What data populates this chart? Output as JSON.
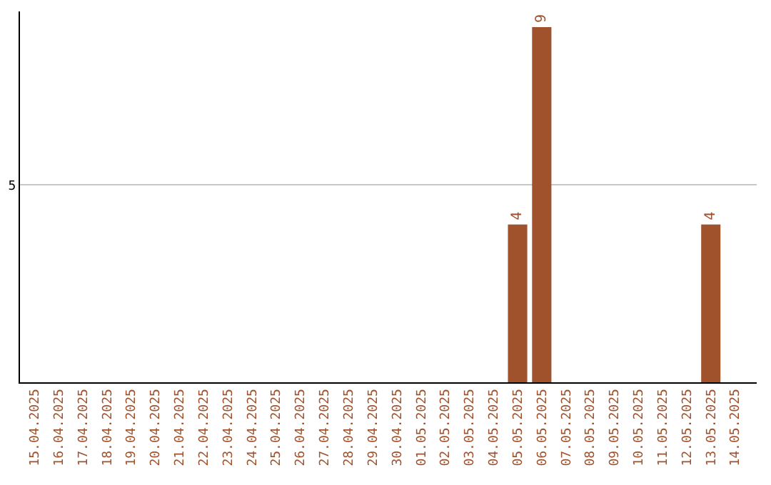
{
  "chart_data": {
    "type": "bar",
    "categories": [
      "15.04.2025",
      "16.04.2025",
      "17.04.2025",
      "18.04.2025",
      "19.04.2025",
      "20.04.2025",
      "21.04.2025",
      "22.04.2025",
      "23.04.2025",
      "24.04.2025",
      "25.04.2025",
      "26.04.2025",
      "27.04.2025",
      "28.04.2025",
      "29.04.2025",
      "30.04.2025",
      "01.05.2025",
      "02.05.2025",
      "03.05.2025",
      "04.05.2025",
      "05.05.2025",
      "06.05.2025",
      "07.05.2025",
      "08.05.2025",
      "09.05.2025",
      "10.05.2025",
      "11.05.2025",
      "12.05.2025",
      "13.05.2025",
      "14.05.2025"
    ],
    "values": [
      null,
      null,
      null,
      null,
      null,
      null,
      null,
      null,
      null,
      null,
      null,
      null,
      null,
      null,
      null,
      null,
      null,
      null,
      null,
      null,
      4,
      9,
      null,
      null,
      null,
      null,
      null,
      null,
      4,
      null
    ],
    "value_labels": [
      null,
      null,
      null,
      null,
      null,
      null,
      null,
      null,
      null,
      null,
      null,
      null,
      null,
      null,
      null,
      null,
      null,
      null,
      null,
      null,
      "4",
      "9",
      null,
      null,
      null,
      null,
      null,
      null,
      "4",
      null
    ],
    "color": "#a0522d",
    "ylim": [
      0,
      9.4
    ],
    "yticks": [
      5
    ],
    "grid": "y"
  }
}
